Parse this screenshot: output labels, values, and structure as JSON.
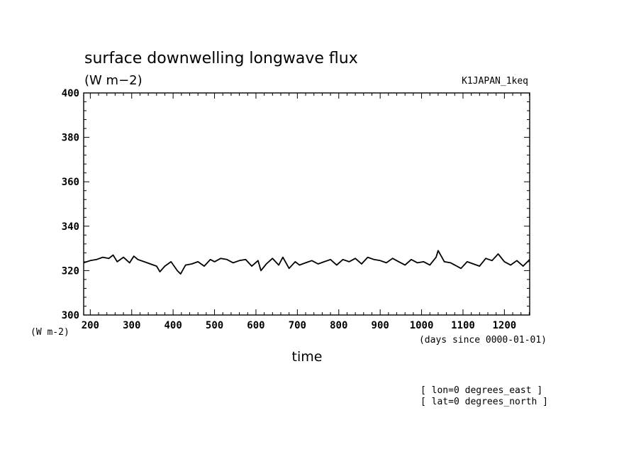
{
  "chart_data": {
    "type": "line",
    "title": "surface downwelling longwave flux",
    "units_label": "(W m−2)",
    "dataset_label": "K1JAPAN_1keq",
    "ylabel": "(W m-2)",
    "xlabel": "time",
    "x_units": "(days since 0000-01-01)",
    "xlim": [
      184,
      1261
    ],
    "ylim": [
      300,
      400
    ],
    "x_ticks": [
      "200",
      "300",
      "400",
      "500",
      "600",
      "700",
      "800",
      "900",
      "1000",
      "1100",
      "1200"
    ],
    "y_ticks": [
      "300",
      "320",
      "340",
      "360",
      "380",
      "400"
    ],
    "grid": false,
    "series": [
      {
        "x": [
          184,
          200,
          215,
          230,
          245,
          255,
          265,
          280,
          295,
          305,
          315,
          330,
          345,
          360,
          368,
          380,
          395,
          410,
          418,
          430,
          445,
          460,
          475,
          490,
          500,
          515,
          530,
          545,
          560,
          575,
          590,
          605,
          612,
          625,
          640,
          655,
          665,
          680,
          695,
          705,
          720,
          735,
          750,
          765,
          780,
          795,
          810,
          825,
          840,
          855,
          870,
          885,
          900,
          915,
          930,
          945,
          960,
          975,
          990,
          1005,
          1020,
          1035,
          1040,
          1055,
          1070,
          1085,
          1095,
          1110,
          1125,
          1140,
          1155,
          1170,
          1185,
          1200,
          1215,
          1230,
          1245,
          1261
        ],
        "y": [
          323.5,
          324.5,
          325,
          326,
          325.5,
          327,
          324,
          326,
          323.5,
          326.5,
          325,
          324,
          323,
          322,
          319.5,
          322,
          324,
          320,
          318.5,
          322.5,
          323,
          324,
          322,
          325,
          324,
          325.5,
          325,
          323.5,
          324.5,
          325,
          322,
          324.5,
          320,
          323,
          325.5,
          322.5,
          326,
          321,
          324,
          322.5,
          323.5,
          324.5,
          323,
          324,
          325,
          322.5,
          325,
          324,
          325.5,
          323,
          326,
          325,
          324.5,
          323.5,
          325.5,
          324,
          322.5,
          325,
          323.5,
          324,
          322.5,
          326,
          329,
          324,
          323.5,
          322,
          321,
          324,
          323,
          322,
          325.5,
          324.5,
          327.5,
          324,
          322.5,
          324.5,
          322,
          325
        ]
      }
    ]
  },
  "footer": {
    "lon": "[ lon=0 degrees_east ]",
    "lat": "[ lat=0 degrees_north ]"
  },
  "colors": {
    "line": "#000000",
    "axis": "#000000",
    "background": "#ffffff"
  }
}
